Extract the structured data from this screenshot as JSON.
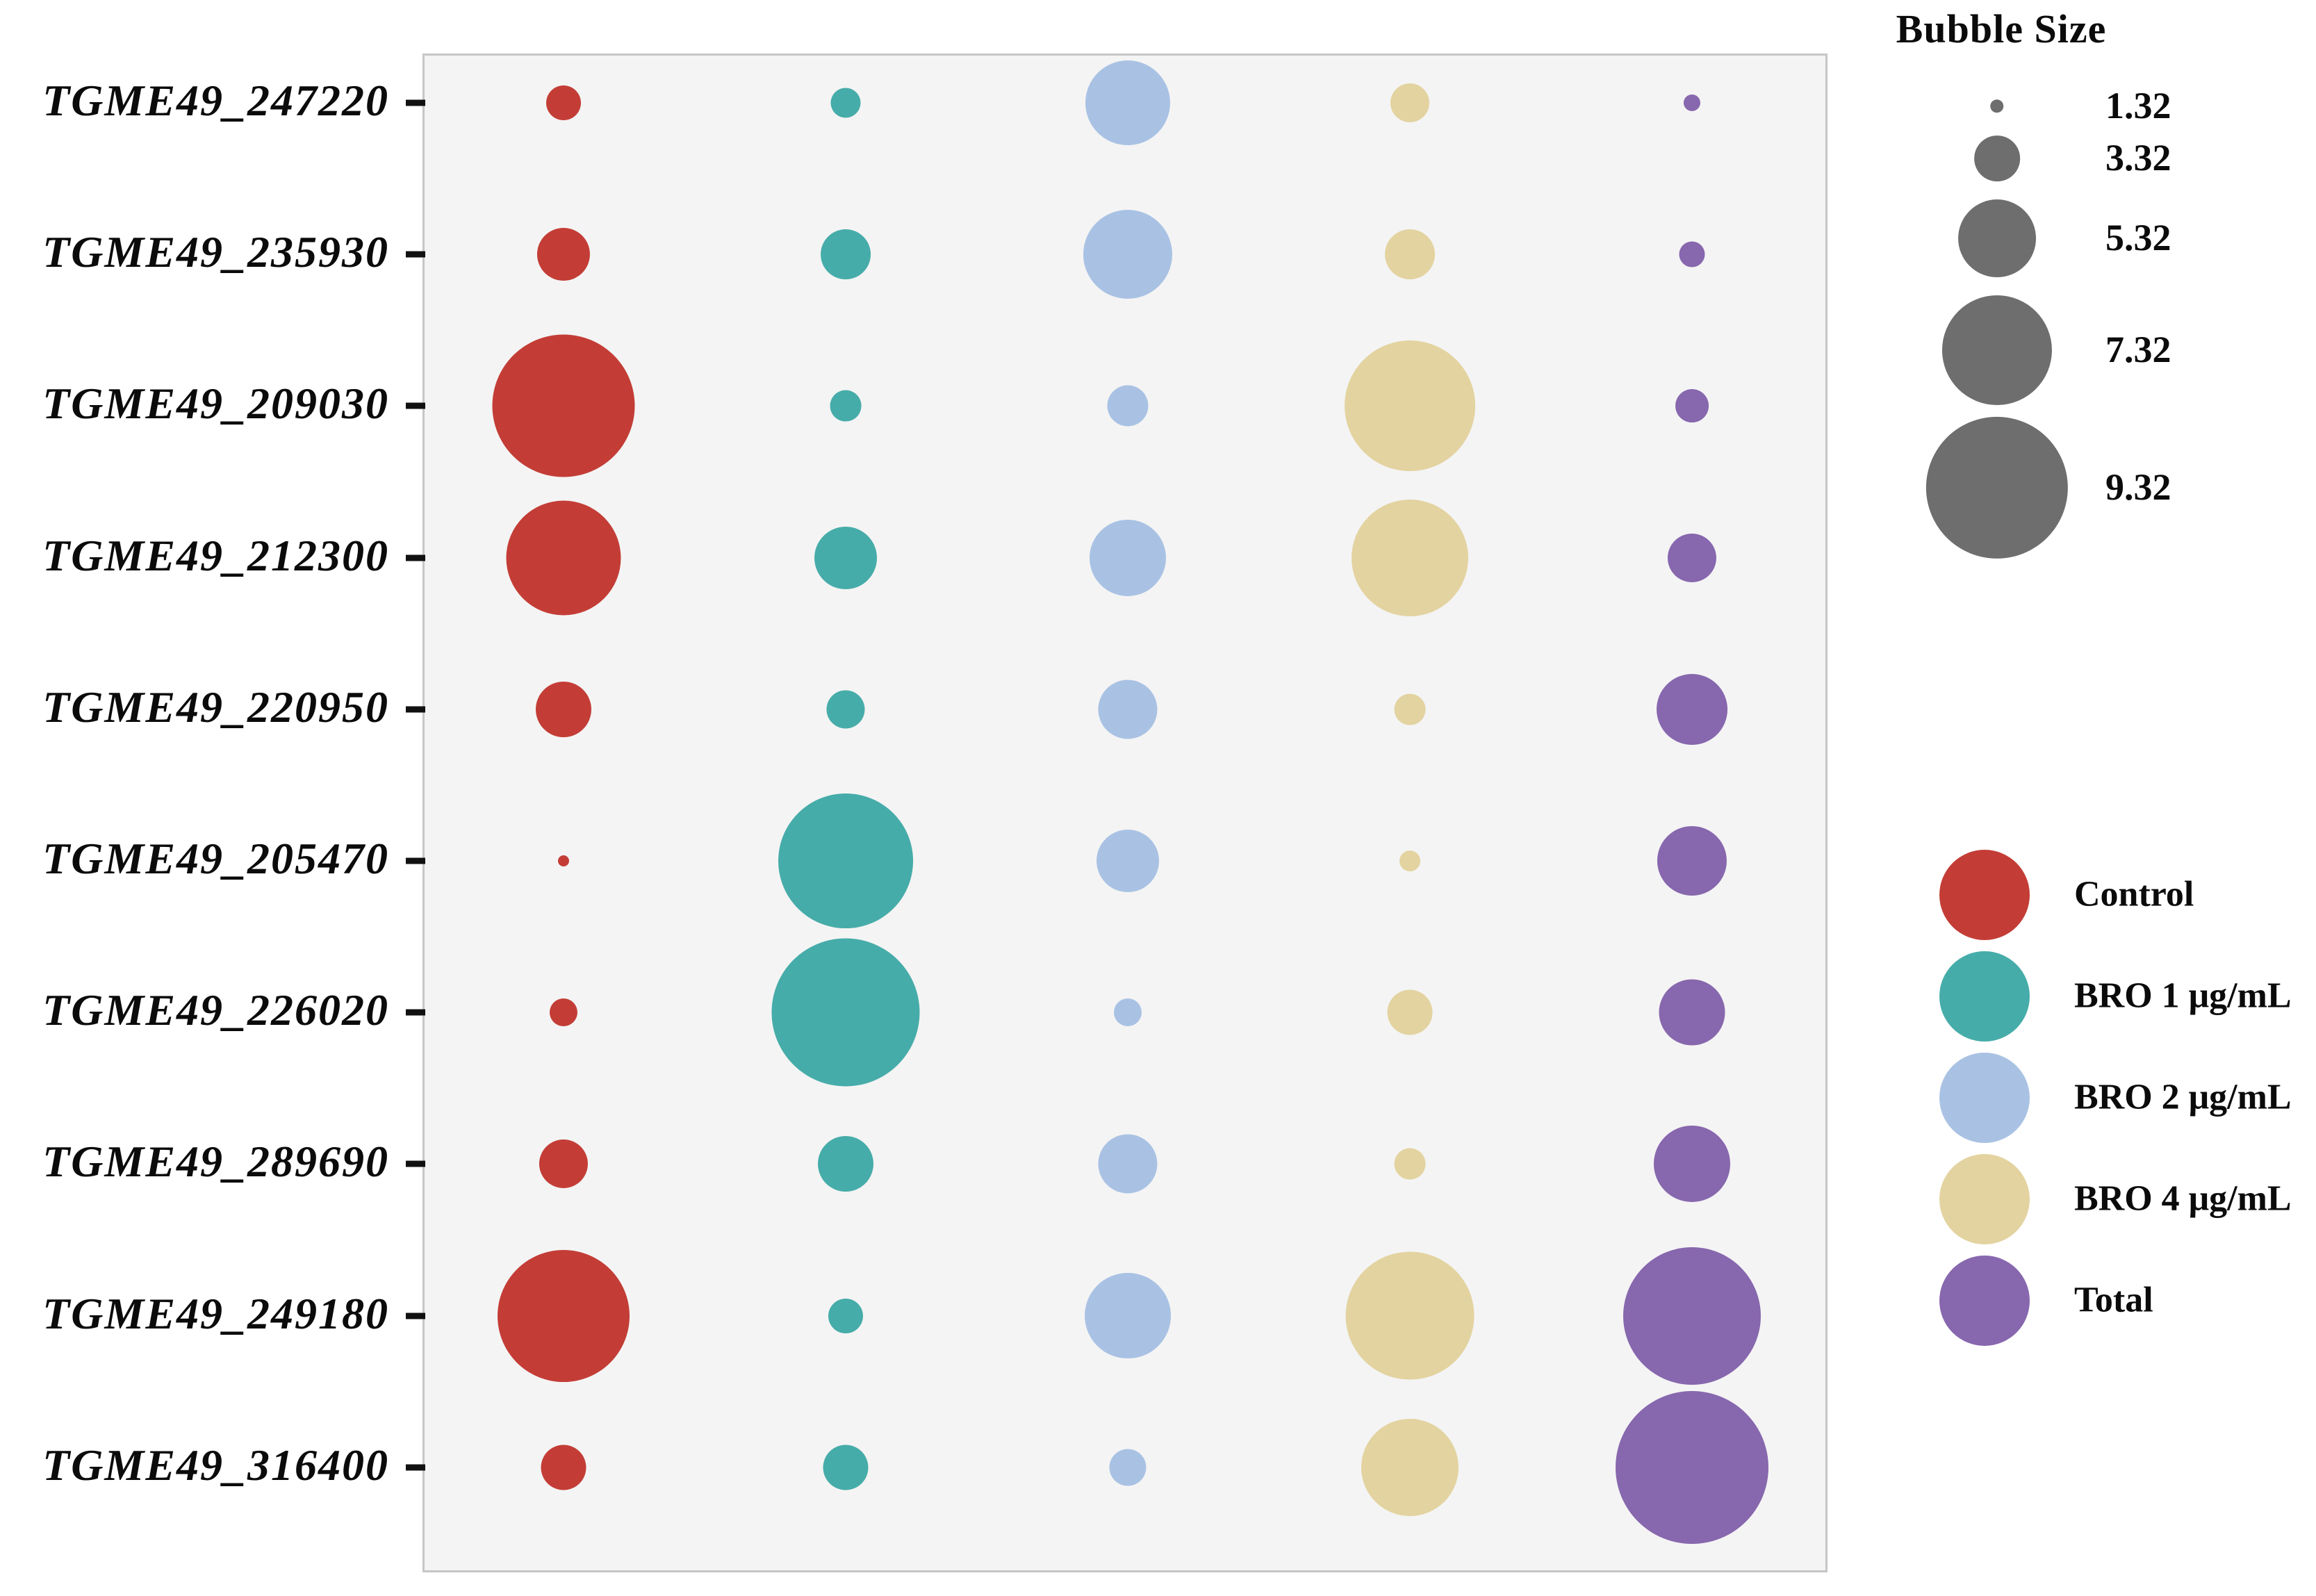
{
  "chart_data": {
    "type": "scatter",
    "subtype": "bubble-matrix",
    "title": "",
    "xlabel": "",
    "ylabel": "",
    "grid": false,
    "plot_background": "#f4f4f4",
    "y_categories": [
      "TGME49_247220",
      "TGME49_235930",
      "TGME49_209030",
      "TGME49_212300",
      "TGME49_220950",
      "TGME49_205470",
      "TGME49_226020",
      "TGME49_289690",
      "TGME49_249180",
      "TGME49_316400"
    ],
    "x_categories": [
      "Control",
      "BRO 1 μg/mL",
      "BRO 2 μg/mL",
      "BRO 4 μg/mL",
      "Total"
    ],
    "series": [
      {
        "name": "Control",
        "color": "#c33d36",
        "values": [
          2.64,
          3.77,
          9.35,
          7.62,
          3.94,
          1.17,
          2.21,
          3.51,
          8.7,
          3.29
        ]
      },
      {
        "name": "BRO 1 μg/mL",
        "color": "#46aca9",
        "values": [
          2.34,
          3.59,
          2.42,
          4.37,
          2.86,
          8.87,
          9.7,
          3.94,
          2.64,
          3.29
        ]
      },
      {
        "name": "BRO 2 μg/mL",
        "color": "#a9c2e4",
        "values": [
          5.76,
          6.02,
          3.03,
          5.24,
          4.16,
          4.37,
          2.21,
          4.16,
          5.84,
          2.77
        ]
      },
      {
        "name": "BRO 4 μg/mL",
        "color": "#e3d3a0",
        "values": [
          2.9,
          3.59,
          8.61,
          7.75,
          2.42,
          1.77,
          3.29,
          2.42,
          8.48,
          6.54
        ]
      },
      {
        "name": "Total",
        "color": "#8767ae",
        "values": [
          1.52,
          2.08,
          2.55,
          3.51,
          4.89,
          4.81,
          4.59,
          5.24,
          9.05,
          10.0
        ]
      }
    ],
    "size_legend": {
      "title": "Bubble Size",
      "values": [
        "1.32",
        "3.32",
        "5.32",
        "7.32",
        "9.32"
      ],
      "color": "#6e6e6e"
    },
    "color_legend": {
      "entries": [
        "Control",
        "BRO 1 μg/mL",
        "BRO 2 μg/mL",
        "BRO 4 μg/mL",
        "Total"
      ]
    },
    "legend_position": "right",
    "size_axis_note": "bubble diameter is linear in value"
  }
}
